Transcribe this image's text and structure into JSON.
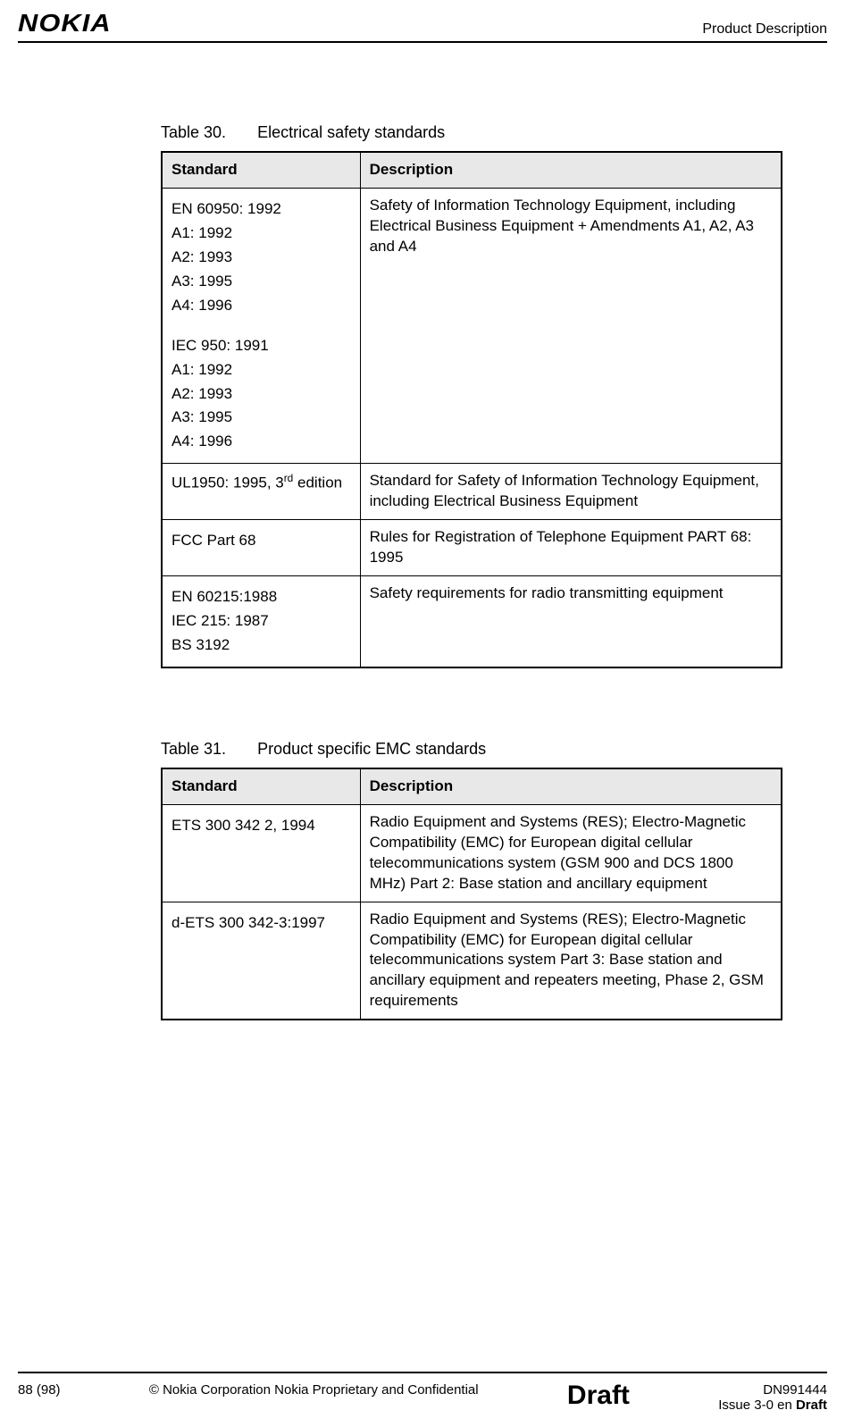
{
  "header": {
    "logo": "NOKIA",
    "section": "Product Description"
  },
  "tables": [
    {
      "number": "Table 30.",
      "title": "Electrical safety standards",
      "columns": [
        "Standard",
        "Description"
      ],
      "rows": [
        {
          "standard_lines": [
            "EN 60950: 1992",
            "A1: 1992",
            "A2: 1993",
            "A3: 1995",
            "A4: 1996",
            "",
            "IEC 950: 1991",
            " A1: 1992",
            "A2: 1993",
            "A3: 1995",
            "A4: 1996"
          ],
          "description": "Safety of Information Technology Equipment, including Electrical Business Equipment + Amendments A1, A2, A3 and A4"
        },
        {
          "standard_html": "UL1950: 1995, 3<sup>rd</sup> edition",
          "description": "Standard for Safety of Information Technology Equipment, including Electrical Business Equipment"
        },
        {
          "standard_lines": [
            "FCC Part 68"
          ],
          "description": "Rules for Registration of Telephone Equipment PART 68: 1995"
        },
        {
          "standard_lines": [
            "EN 60215:1988",
            "IEC 215: 1987",
            "BS 3192"
          ],
          "description": "Safety requirements for radio transmitting equipment"
        }
      ]
    },
    {
      "number": "Table 31.",
      "title": "Product specific EMC standards",
      "columns": [
        "Standard",
        "Description"
      ],
      "rows": [
        {
          "standard_lines": [
            "ETS 300 342 2, 1994"
          ],
          "description": "Radio Equipment and Systems (RES); Electro-Magnetic Compatibility (EMC) for European digital cellular telecommunications system (GSM 900 and DCS 1800 MHz) Part 2: Base station and ancillary equipment"
        },
        {
          "standard_lines": [
            "d-ETS 300 342-3:1997"
          ],
          "description": "Radio Equipment and Systems (RES); Electro-Magnetic Compatibility (EMC) for European digital cellular telecommunications system  Part 3: Base station and ancillary equipment and repeaters meeting, Phase 2, GSM requirements"
        }
      ]
    }
  ],
  "footer": {
    "page": "88 (98)",
    "copyright": "© Nokia Corporation",
    "confidential": "Nokia Proprietary and Confidential",
    "status": "Draft",
    "docnum": "DN991444",
    "issue_prefix": "Issue 3-0 en ",
    "issue_bold": "Draft"
  },
  "style": {
    "header_bg": "#e8e8e8",
    "border_color": "#000000",
    "page_bg": "#ffffff",
    "font_family": "Arial, Helvetica, sans-serif"
  }
}
